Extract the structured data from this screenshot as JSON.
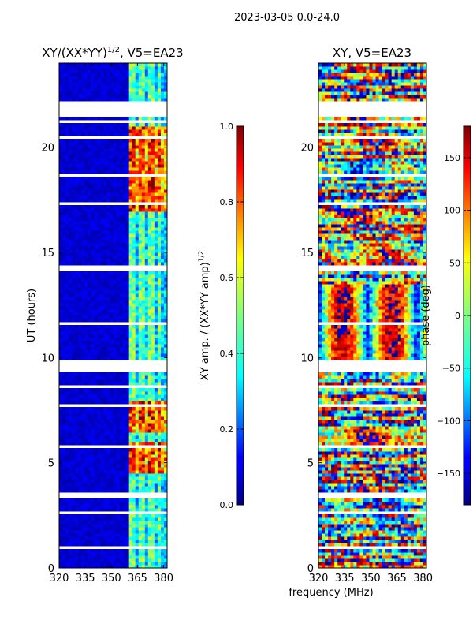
{
  "chart_data": {
    "type": "heatmap",
    "suptitle": "2023-03-05 0.0-24.0",
    "xlabel": "frequency (MHz)",
    "x_tick_labels": [
      "320",
      "335",
      "350",
      "365",
      "380"
    ],
    "x_ticks": [
      320,
      335,
      350,
      365,
      380
    ],
    "xlim": [
      320,
      382
    ],
    "ylim": [
      0,
      24
    ],
    "y_ticks": [
      0,
      5,
      10,
      15,
      20
    ],
    "y_tick_labels": [
      "0",
      "5",
      "10",
      "15",
      "20"
    ],
    "panels": [
      {
        "title": "XY/(XX*YY)",
        "title_superscript": "1/2",
        "title_suffix": ", V5=EA23",
        "ylabel": "UT (hours)",
        "colorbar": {
          "label": "XY amp. / (XX*YY amp)",
          "label_superscript": "1/2",
          "range": [
            0.0,
            1.0
          ],
          "ticks": [
            0.0,
            0.2,
            0.4,
            0.6,
            0.8,
            1.0
          ],
          "tick_labels": [
            "0.0",
            "0.2",
            "0.4",
            "0.6",
            "0.8",
            "1.0"
          ]
        }
      },
      {
        "title": "XY, V5=EA23",
        "ylabel": "",
        "colorbar": {
          "label": "phase (deg)",
          "range": [
            -180,
            180
          ],
          "ticks": [
            -150,
            -100,
            -50,
            0,
            50,
            100,
            150
          ],
          "tick_labels": [
            "−150",
            "−100",
            "−50",
            "0",
            "50",
            "100",
            "150"
          ]
        }
      }
    ],
    "gap_bands_ut_hours": [
      [
        21.1,
        21.25
      ],
      [
        21.45,
        21.7
      ],
      [
        21.8,
        22.2
      ],
      [
        20.4,
        20.55
      ],
      [
        18.6,
        18.7
      ],
      [
        17.3,
        17.4
      ],
      [
        14.1,
        14.35
      ],
      [
        13.0,
        13.05
      ],
      [
        12.25,
        12.35
      ],
      [
        11.6,
        11.7
      ],
      [
        9.3,
        9.85
      ],
      [
        8.6,
        8.7
      ],
      [
        7.7,
        7.8
      ],
      [
        5.75,
        5.85
      ],
      [
        3.3,
        3.55
      ],
      [
        2.6,
        2.7
      ],
      [
        0.9,
        1.05
      ],
      [
        0.1,
        0.15
      ]
    ]
  }
}
